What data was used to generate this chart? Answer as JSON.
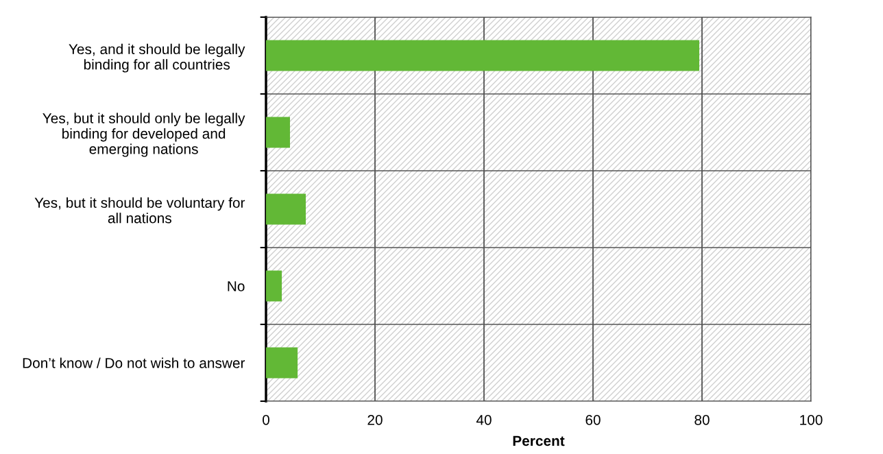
{
  "chart_data": {
    "type": "bar",
    "orientation": "horizontal",
    "xlabel": "Percent",
    "categories": [
      "Yes, and it should be legally\nbinding for all countries",
      "Yes, but it should only be legally\nbinding for developed and\nemerging nations",
      "Yes, but it should be voluntary for\nall nations",
      "No",
      "Don’t know / Do not wish to answer"
    ],
    "values": [
      79.5,
      4.4,
      7.3,
      2.9,
      5.8
    ],
    "color": "#62b836",
    "xlim": [
      0,
      100
    ],
    "xticks": [
      0,
      20,
      40,
      60,
      80,
      100
    ],
    "grid": "x"
  }
}
